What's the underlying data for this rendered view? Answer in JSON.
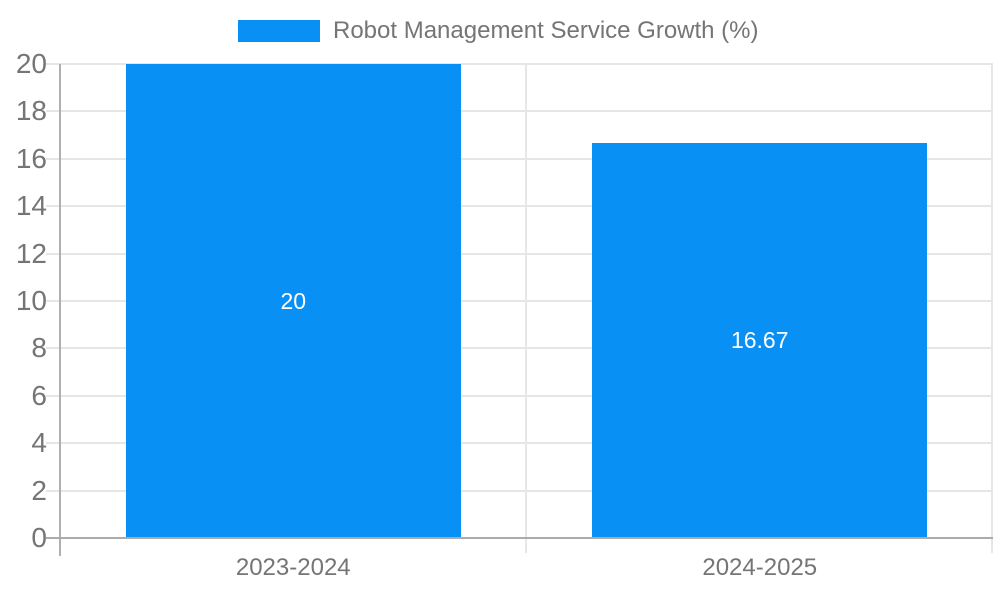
{
  "legend": {
    "label": "Robot Management Service Growth (%)"
  },
  "chart_data": {
    "type": "bar",
    "title": "Robot Management Service Growth (%)",
    "categories": [
      "2023-2024",
      "2024-2025"
    ],
    "values": [
      20,
      16.67
    ],
    "bar_labels": [
      "20",
      "16.67"
    ],
    "xlabel": "",
    "ylabel": "",
    "ylim": [
      0,
      20
    ],
    "yticks": [
      0,
      2,
      4,
      6,
      8,
      10,
      12,
      14,
      16,
      18,
      20
    ],
    "grid": true,
    "legend_position": "top-center",
    "colors": {
      "bar": "#0990f5",
      "bar_label_text": "#ffffff",
      "axis_text": "#757575",
      "gridline": "#e6e6e6",
      "axis_line": "#b0b0b0",
      "baseline": "#ababab"
    }
  }
}
